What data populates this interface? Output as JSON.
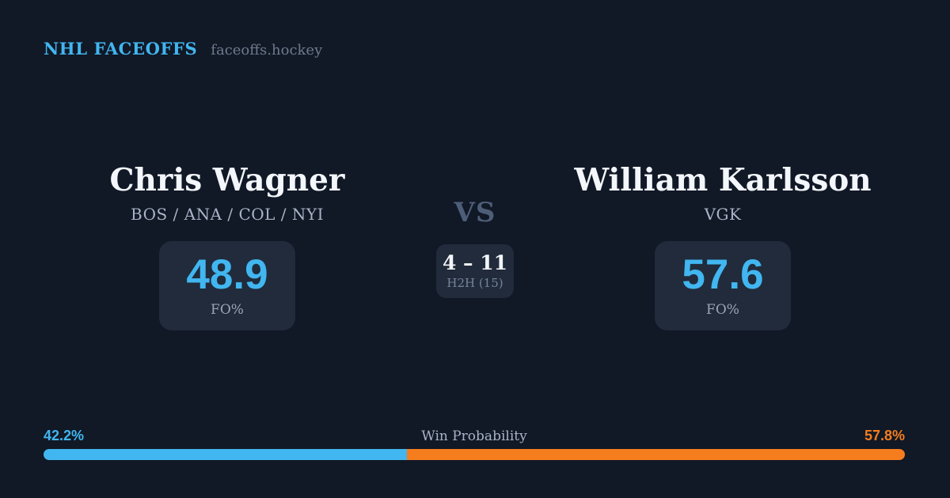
{
  "colors": {
    "background": "#111826",
    "card": "#212b3b",
    "accent_blue": "#41b6f0",
    "accent_orange": "#f57d1e",
    "text_primary": "#f3f6fa",
    "text_muted": "#a9b4c6"
  },
  "header": {
    "brand": "NHL FACEOFFS",
    "domain": "faceoffs.hockey"
  },
  "player_left": {
    "name": "Chris Wagner",
    "teams": "BOS / ANA / COL / NYI",
    "stat_value": "48.9",
    "stat_label": "FO%"
  },
  "versus": {
    "label": "VS",
    "h2h_score": "4 – 11",
    "h2h_label": "H2H (15)"
  },
  "player_right": {
    "name": "William Karlsson",
    "teams": "VGK",
    "stat_value": "57.6",
    "stat_label": "FO%"
  },
  "win_probability": {
    "label": "Win Probability",
    "left_value": "42.2%",
    "right_value": "57.8%",
    "left_pct": 42.2,
    "right_pct": 57.8
  }
}
